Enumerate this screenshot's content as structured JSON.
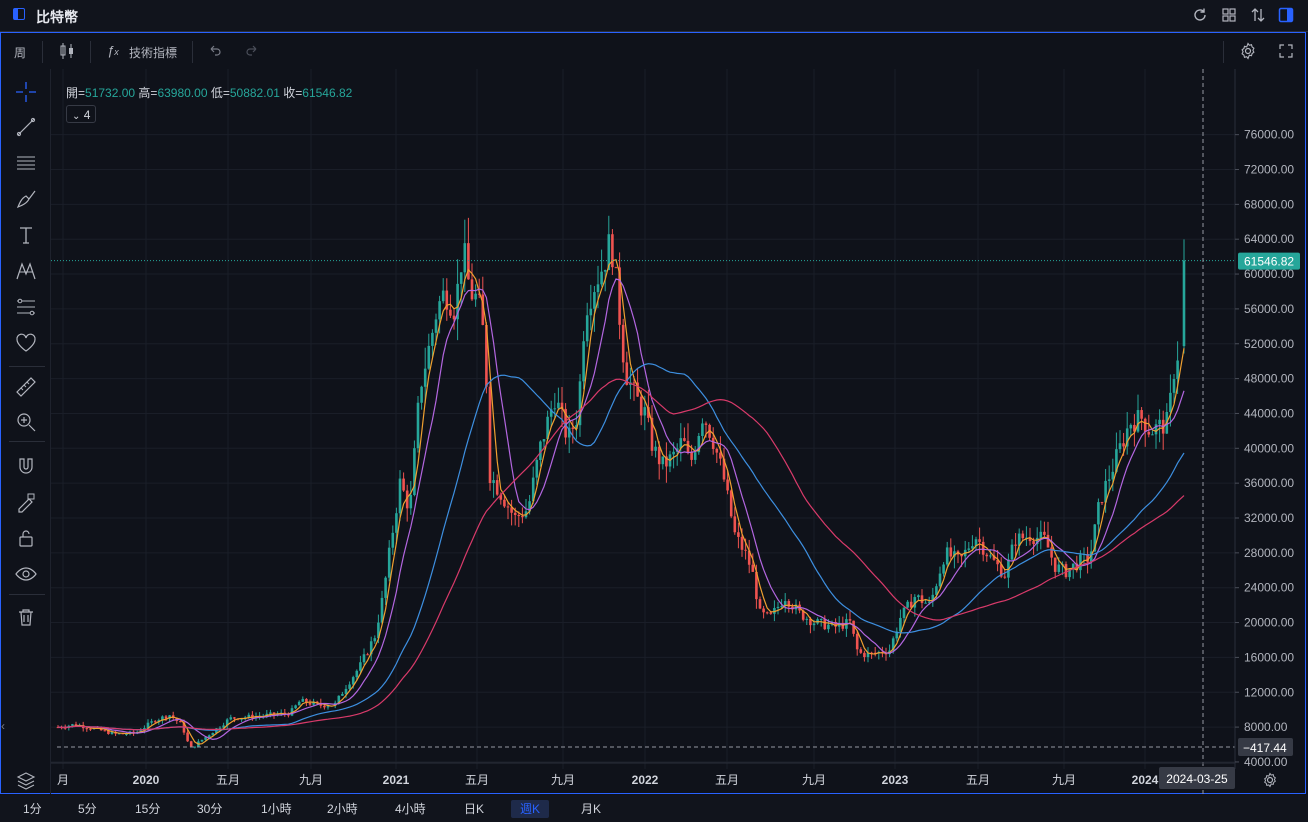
{
  "window": {
    "title": "比特幣"
  },
  "toolbar": {
    "interval_label": "周",
    "indicators_label": "技術指標"
  },
  "ohlc": {
    "open_label": "開=",
    "open": "51732.00",
    "high_label": "高=",
    "high": "63980.00",
    "low_label": "低=",
    "low": "50882.01",
    "close_label": "收=",
    "close": "61546.82"
  },
  "indicator_toggle": {
    "count": "4"
  },
  "price_axis": {
    "ticks": [
      "76000.00",
      "72000.00",
      "68000.00",
      "64000.00",
      "60000.00",
      "56000.00",
      "52000.00",
      "48000.00",
      "44000.00",
      "40000.00",
      "36000.00",
      "32000.00",
      "28000.00",
      "24000.00",
      "20000.00",
      "16000.00",
      "12000.00",
      "8000.00",
      "4000.00"
    ],
    "last_price_label": "61546.82",
    "crosshair_price_label": "−417.44"
  },
  "time_axis": {
    "labels": [
      "月",
      "2020",
      "五月",
      "九月",
      "2021",
      "五月",
      "九月",
      "2022",
      "五月",
      "九月",
      "2023",
      "五月",
      "九月",
      "2024"
    ],
    "crosshair_date_label": "2024-03-25"
  },
  "periods": [
    "1分",
    "5分",
    "15分",
    "30分",
    "1小時",
    "2小時",
    "4小時",
    "日K",
    "週K",
    "月K"
  ],
  "active_period": "週K",
  "colors": {
    "up": "#26a69a",
    "down": "#ef5350",
    "accent": "#2962ff",
    "ma_fast": "#f0a030",
    "ma_mid": "#b366e0",
    "ma_slow": "#3d8fe0",
    "ma_long": "#d83a6a"
  },
  "chart_data": {
    "type": "candlestick",
    "title": "比特幣",
    "interval": "週K",
    "ylim": [
      -417.44,
      76000
    ],
    "x_range": [
      "2019-12",
      "2024-03-25"
    ],
    "grid": true,
    "key_points": [
      {
        "date": "2019-12",
        "price": 8000
      },
      {
        "date": "2020-03",
        "price": 5500
      },
      {
        "date": "2020-09",
        "price": 10500
      },
      {
        "date": "2021-01",
        "price": 34000
      },
      {
        "date": "2021-04",
        "price": 63000
      },
      {
        "date": "2021-07",
        "price": 31000
      },
      {
        "date": "2021-11",
        "price": 67000
      },
      {
        "date": "2022-06",
        "price": 20000
      },
      {
        "date": "2022-11",
        "price": 16000
      },
      {
        "date": "2023-04",
        "price": 29000
      },
      {
        "date": "2023-08",
        "price": 26000
      },
      {
        "date": "2024-01",
        "price": 43000
      },
      {
        "date": "2024-03-25",
        "price": 61546.82
      }
    ],
    "last_candle": {
      "open": 51732.0,
      "high": 63980.0,
      "low": 50882.01,
      "close": 61546.82
    }
  }
}
